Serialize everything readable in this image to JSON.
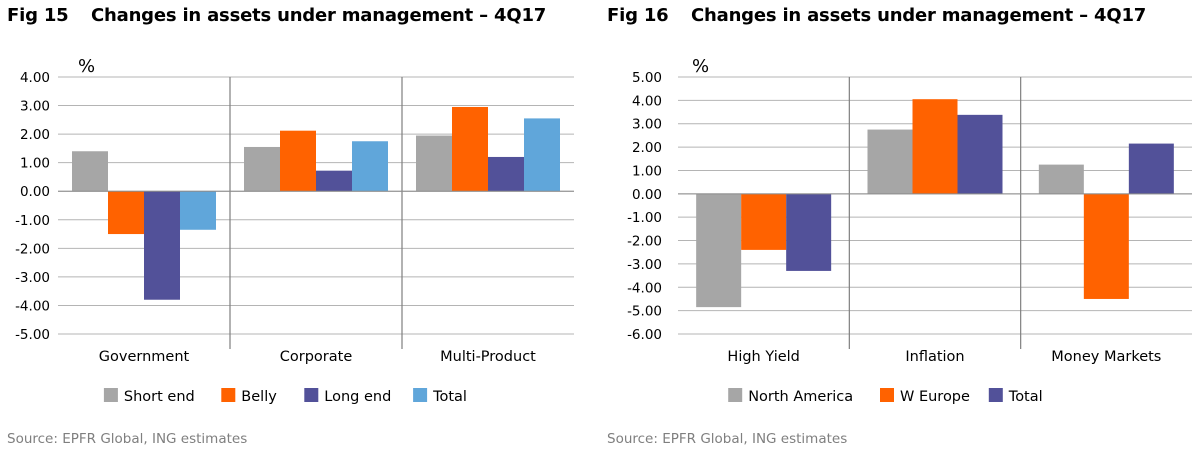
{
  "chart_data": [
    {
      "type": "bar",
      "fig_label": "Fig 15",
      "title": "Changes in assets under management – 4Q17",
      "ylabel": "%",
      "ylim": [
        -5,
        4
      ],
      "yticks": [
        4,
        3,
        2,
        1,
        0,
        -1,
        -2,
        -3,
        -4,
        -5
      ],
      "tick_labels": [
        "4.00",
        "3.00",
        "2.00",
        "1.00",
        "0.00",
        "-1.00",
        "-2.00",
        "-3.00",
        "-4.00",
        "-5.00"
      ],
      "categories": [
        "Government",
        "Corporate",
        "Multi-Product"
      ],
      "series": [
        {
          "name": "Short end",
          "color": "#a6a6a6",
          "values": [
            1.4,
            1.55,
            1.95
          ]
        },
        {
          "name": "Belly",
          "color": "#ff6200",
          "values": [
            -1.5,
            2.12,
            2.95
          ]
        },
        {
          "name": "Long end",
          "color": "#525199",
          "values": [
            -3.8,
            0.72,
            1.2
          ]
        },
        {
          "name": "Total",
          "color": "#60a6da",
          "values": [
            -1.35,
            1.75,
            2.55
          ]
        }
      ],
      "grid": true,
      "legend": "bottom",
      "source": "Source: EPFR Global, ING estimates"
    },
    {
      "type": "bar",
      "fig_label": "Fig 16",
      "title": "Changes in assets under management – 4Q17",
      "ylabel": "%",
      "ylim": [
        -6,
        5
      ],
      "yticks": [
        5,
        4,
        3,
        2,
        1,
        0,
        -1,
        -2,
        -3,
        -4,
        -5,
        -6
      ],
      "tick_labels": [
        "5.00",
        "4.00",
        "3.00",
        "2.00",
        "1.00",
        "0.00",
        "-1.00",
        "-2.00",
        "-3.00",
        "-4.00",
        "-5.00",
        "-6.00"
      ],
      "categories": [
        "High Yield",
        "Inflation",
        "Money Markets"
      ],
      "series": [
        {
          "name": "North America",
          "color": "#a6a6a6",
          "values": [
            -4.85,
            2.75,
            1.25
          ]
        },
        {
          "name": "W Europe",
          "color": "#ff6200",
          "values": [
            -2.4,
            4.05,
            -4.5
          ]
        },
        {
          "name": "Total",
          "color": "#525199",
          "values": [
            -3.3,
            3.38,
            2.15
          ]
        }
      ],
      "grid": true,
      "legend": "bottom",
      "source": "Source: EPFR Global, ING estimates"
    }
  ]
}
